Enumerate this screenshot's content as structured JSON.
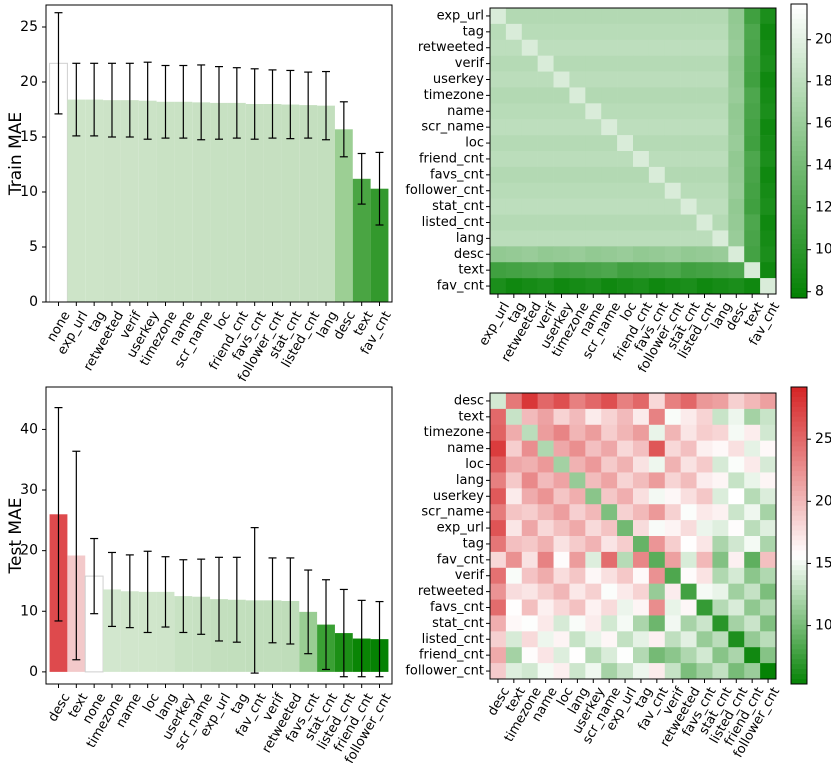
{
  "chart_data": [
    {
      "type": "bar",
      "ylabel": "Train MAE",
      "ylim": [
        0,
        27
      ],
      "yticks": [
        0,
        5,
        10,
        15,
        20,
        25
      ],
      "categories": [
        "none",
        "exp_url",
        "tag",
        "retweeted",
        "verif",
        "userkey",
        "timezone",
        "name",
        "scr_name",
        "loc",
        "friend_cnt",
        "favs_cnt",
        "follower_cnt",
        "stat_cnt",
        "listed_cnt",
        "lang",
        "desc",
        "text",
        "fav_cnt"
      ],
      "values": [
        21.7,
        18.4,
        18.4,
        18.35,
        18.35,
        18.3,
        18.2,
        18.2,
        18.15,
        18.1,
        18.1,
        18.0,
        18.0,
        17.95,
        17.9,
        17.85,
        15.7,
        11.2,
        10.3
      ],
      "errors": [
        4.6,
        3.3,
        3.3,
        3.35,
        3.35,
        3.5,
        3.3,
        3.3,
        3.4,
        3.3,
        3.2,
        3.2,
        3.1,
        3.1,
        3.0,
        3.1,
        2.5,
        2.3,
        3.3
      ],
      "colors": [
        "#ffffff",
        "#cde4c8",
        "#cde4c8",
        "#cce3c7",
        "#cce3c7",
        "#cbe3c6",
        "#c9e2c4",
        "#c9e2c4",
        "#c8e1c3",
        "#c7e1c2",
        "#c7e1c2",
        "#c6e0c1",
        "#c6e0c1",
        "#c5e0c0",
        "#c4dfbf",
        "#c3dfbe",
        "#9ccf94",
        "#4aa543",
        "#33992d"
      ]
    },
    {
      "type": "heatmap",
      "labels": [
        "exp_url",
        "tag",
        "retweeted",
        "verif",
        "userkey",
        "timezone",
        "name",
        "scr_name",
        "loc",
        "friend_cnt",
        "favs_cnt",
        "follower_cnt",
        "stat_cnt",
        "listed_cnt",
        "lang",
        "desc",
        "text",
        "fav_cnt"
      ],
      "colorbar_ticks": [
        8,
        10,
        12,
        14,
        16,
        18,
        20
      ],
      "colorbar_range": [
        7.7,
        21.7
      ],
      "colors": {
        "low": "#008000",
        "high": "#ffffff"
      }
    },
    {
      "type": "bar",
      "ylabel": "Test MAE",
      "ylim": [
        -2,
        47
      ],
      "yticks": [
        0,
        10,
        20,
        30,
        40
      ],
      "categories": [
        "desc",
        "text",
        "none",
        "timezone",
        "name",
        "loc",
        "lang",
        "userkey",
        "scr_name",
        "exp_url",
        "tag",
        "fav_cnt",
        "verif",
        "retweeted",
        "favs_cnt",
        "stat_cnt",
        "listed_cnt",
        "friend_cnt",
        "follower_cnt"
      ],
      "values": [
        26.0,
        19.2,
        15.8,
        13.6,
        13.3,
        13.2,
        13.2,
        12.5,
        12.4,
        12.0,
        11.9,
        11.8,
        11.8,
        11.7,
        9.9,
        7.8,
        6.4,
        5.5,
        5.4
      ],
      "errors": [
        17.6,
        17.2,
        6.2,
        6.1,
        6.0,
        6.7,
        5.8,
        6.0,
        6.2,
        6.9,
        7.0,
        12.0,
        7.0,
        7.1,
        6.9,
        7.4,
        7.2,
        6.3,
        6.2
      ],
      "colors": [
        "#de4a4d",
        "#f3c9ca",
        "#ffffff",
        "#d2e7ce",
        "#d1e6cc",
        "#d0e6cb",
        "#cfe5ca",
        "#c8e2c3",
        "#c7e1c2",
        "#c3dfbe",
        "#c2dfbd",
        "#c1debc",
        "#c1debc",
        "#bfddba",
        "#99cd93",
        "#3aa034",
        "#1c8f16",
        "#0a8505",
        "#058203"
      ]
    },
    {
      "type": "heatmap",
      "labels": [
        "desc",
        "text",
        "timezone",
        "name",
        "loc",
        "lang",
        "userkey",
        "scr_name",
        "exp_url",
        "tag",
        "fav_cnt",
        "verif",
        "retweeted",
        "favs_cnt",
        "stat_cnt",
        "listed_cnt",
        "friend_cnt",
        "follower_cnt"
      ],
      "colorbar_ticks": [
        10,
        15,
        20,
        25
      ],
      "colorbar_range": [
        5.3,
        29.2
      ],
      "colors": {
        "low": "#008000",
        "mid": "#ffffff",
        "high": "#d62728"
      }
    }
  ]
}
